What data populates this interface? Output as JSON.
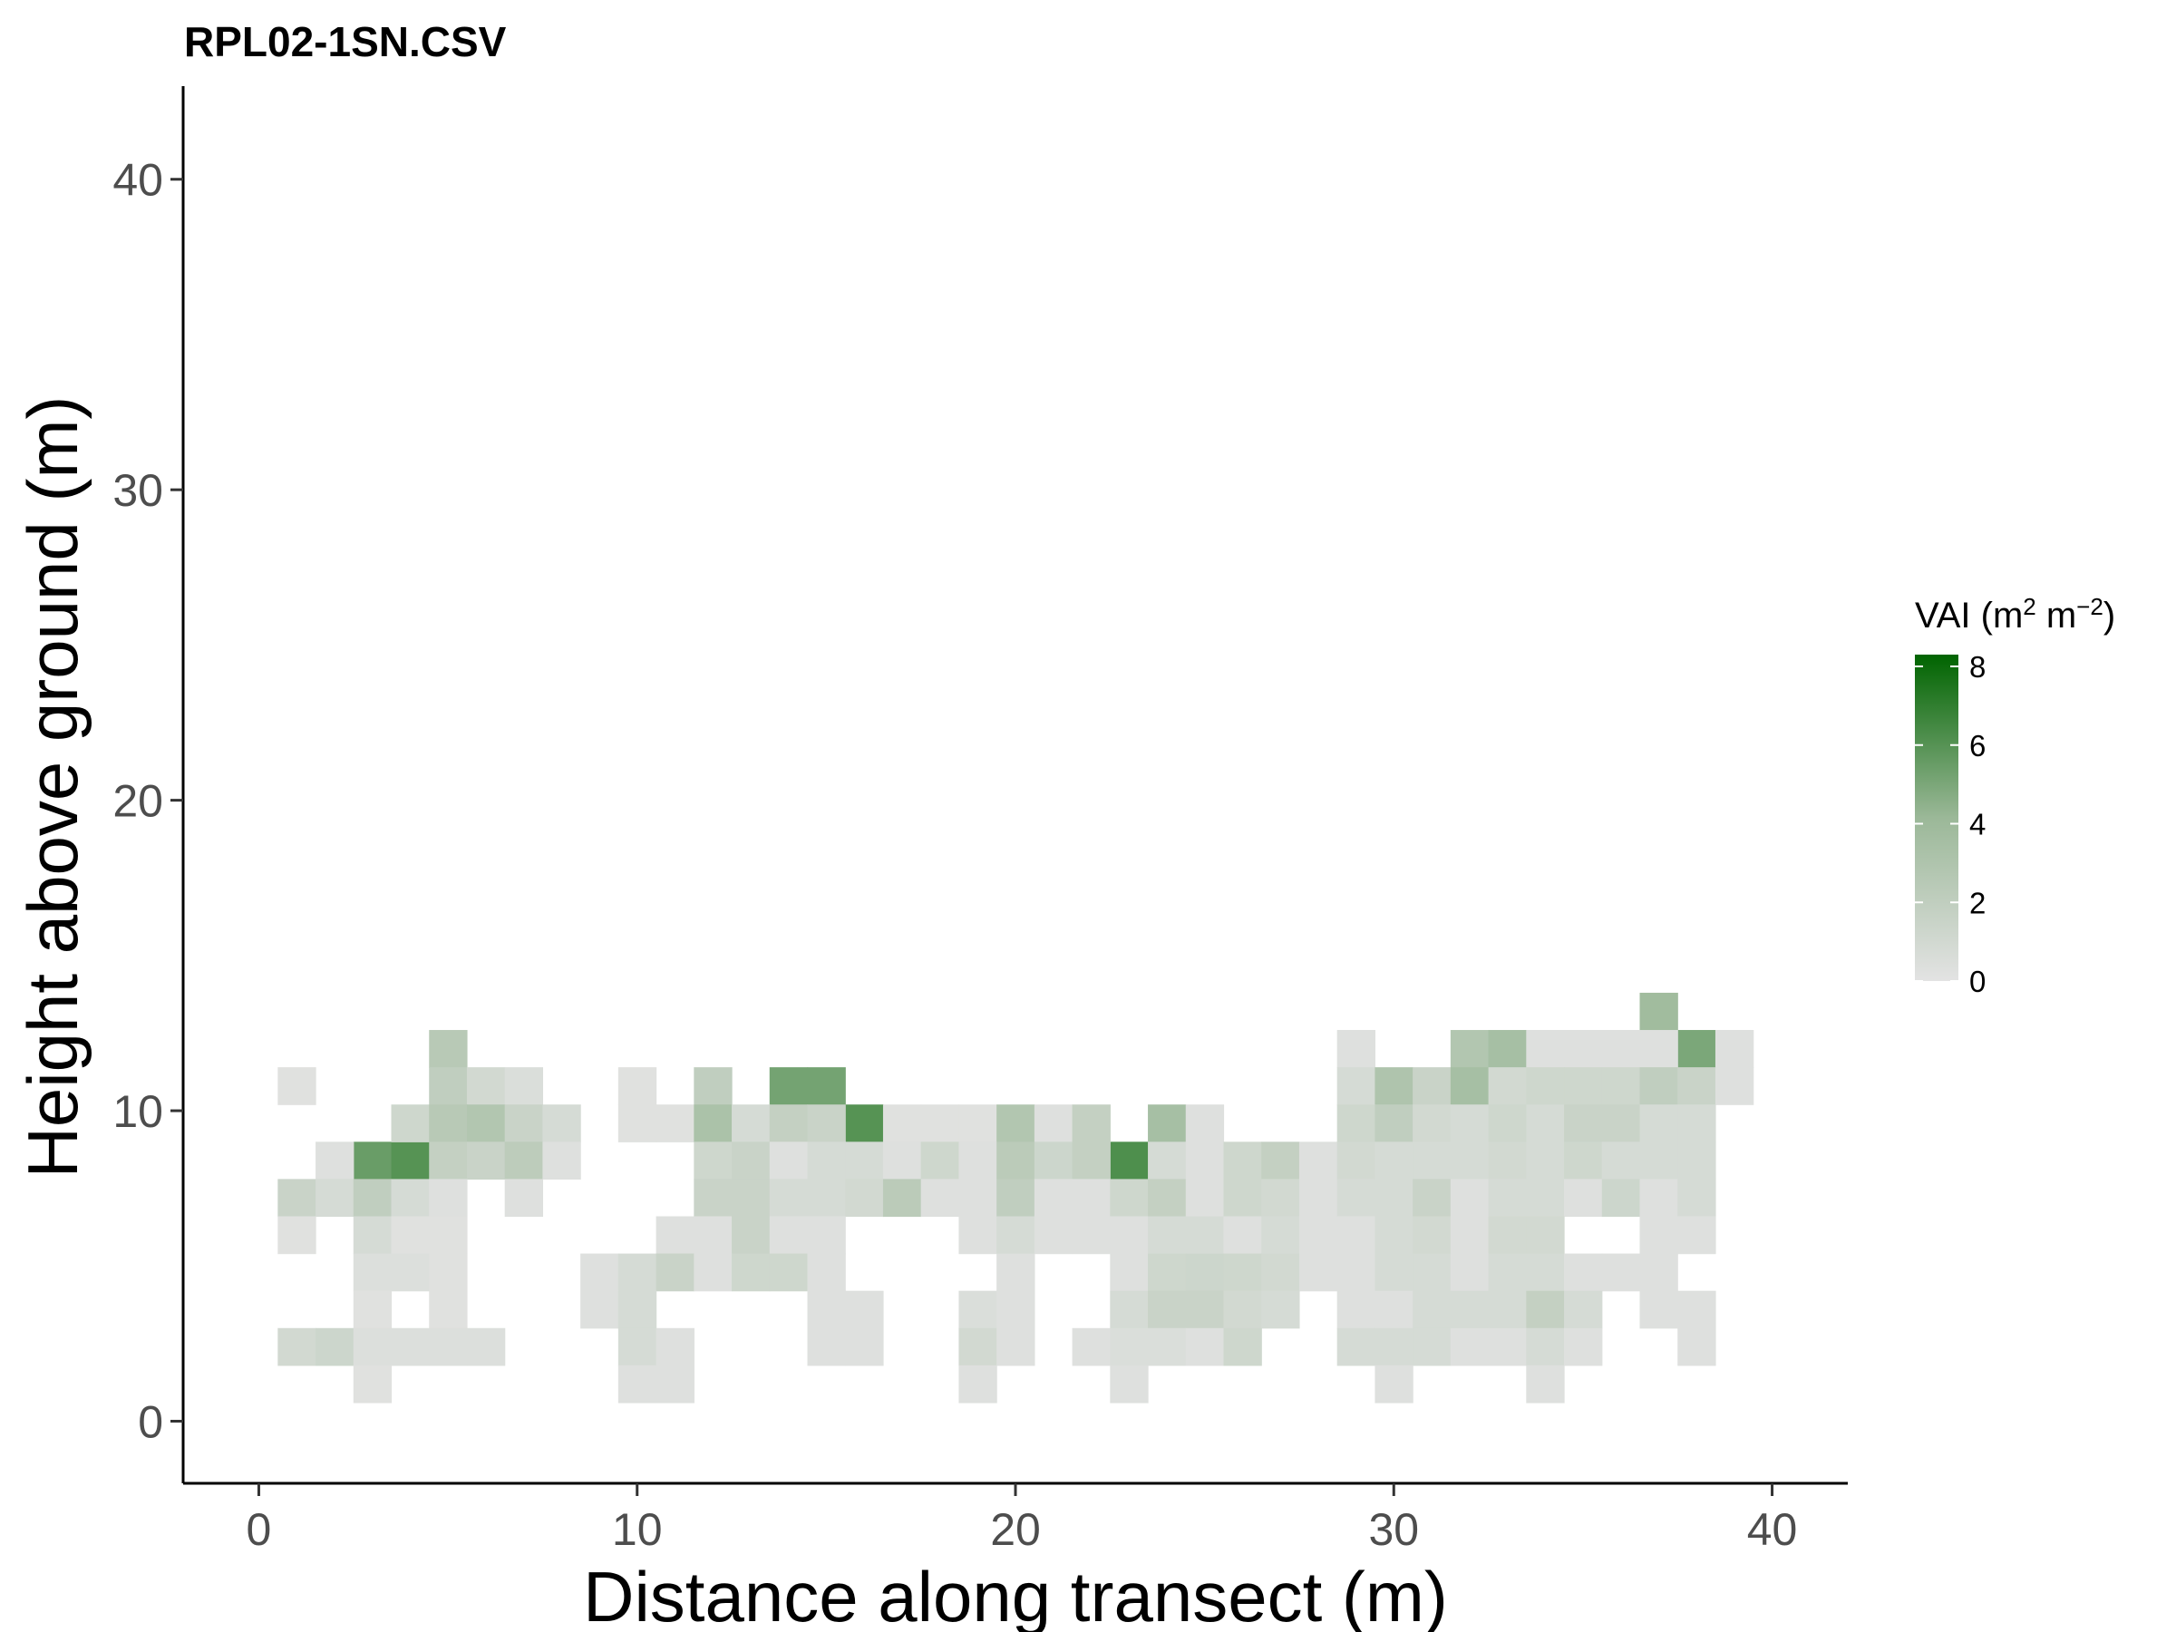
{
  "chart_data": {
    "type": "heatmap",
    "title": "RPL02-1SN.CSV",
    "xlabel": "Distance along transect (m)",
    "ylabel": "Height above ground (m)",
    "xlim": [
      -2,
      42
    ],
    "ylim": [
      -2,
      43
    ],
    "x_ticks": [
      0,
      10,
      20,
      30,
      40
    ],
    "y_ticks": [
      0,
      10,
      20,
      30,
      40
    ],
    "grid": false,
    "legend": {
      "title": "VAI (m",
      "title_sup1": "2",
      "title_mid": " m",
      "title_sup2": "−2",
      "title_end": ")",
      "position": "right",
      "min": 0,
      "max": 8.3,
      "ticks": [
        0,
        2,
        4,
        6,
        8
      ],
      "color_low": "#e3e3e3",
      "color_high": "#006400"
    },
    "cell_width": 1,
    "cell_height": 1.2,
    "cells": [
      [
        1,
        9,
        0.2
      ],
      [
        3,
        7,
        5.5
      ],
      [
        4,
        7,
        6.0
      ],
      [
        14,
        9,
        5.2
      ],
      [
        15,
        9,
        5.2
      ],
      [
        16,
        8,
        6.0
      ],
      [
        23,
        7,
        6.2
      ],
      [
        37,
        11,
        3.8
      ],
      [
        38,
        10,
        5.0
      ],
      [
        5,
        10,
        2.5
      ],
      [
        5,
        9,
        2.0
      ],
      [
        6,
        9,
        1.0
      ],
      [
        7,
        9,
        0.5
      ],
      [
        4,
        8,
        1.2
      ],
      [
        5,
        8,
        2.5
      ],
      [
        6,
        8,
        2.8
      ],
      [
        7,
        8,
        1.5
      ],
      [
        8,
        8,
        0.8
      ],
      [
        2,
        7,
        0.3
      ],
      [
        5,
        7,
        1.8
      ],
      [
        6,
        7,
        1.5
      ],
      [
        7,
        7,
        2.2
      ],
      [
        8,
        7,
        0.3
      ],
      [
        1,
        6,
        1.5
      ],
      [
        2,
        6,
        0.8
      ],
      [
        3,
        6,
        2.0
      ],
      [
        4,
        6,
        0.8
      ],
      [
        5,
        6,
        0.3
      ],
      [
        7,
        6,
        0.3
      ],
      [
        1,
        5,
        0.2
      ],
      [
        3,
        5,
        0.8
      ],
      [
        4,
        5,
        0.2
      ],
      [
        5,
        5,
        0.2
      ],
      [
        3,
        4,
        0.4
      ],
      [
        4,
        4,
        0.4
      ],
      [
        5,
        4,
        0.2
      ],
      [
        3,
        3,
        0.2
      ],
      [
        5,
        3,
        0.2
      ],
      [
        1,
        2,
        1.0
      ],
      [
        2,
        2,
        1.3
      ],
      [
        3,
        2,
        0.4
      ],
      [
        4,
        2,
        0.4
      ],
      [
        5,
        2,
        0.4
      ],
      [
        6,
        2,
        0.4
      ],
      [
        3,
        1,
        0.2
      ],
      [
        10,
        9,
        0.2
      ],
      [
        12,
        9,
        2.0
      ],
      [
        10,
        8,
        0.2
      ],
      [
        11,
        8,
        0.2
      ],
      [
        12,
        8,
        3.2
      ],
      [
        13,
        8,
        0.8
      ],
      [
        14,
        8,
        1.8
      ],
      [
        15,
        8,
        1.5
      ],
      [
        17,
        8,
        0.2
      ],
      [
        18,
        8,
        0.2
      ],
      [
        19,
        8,
        0.2
      ],
      [
        20,
        8,
        2.8
      ],
      [
        21,
        8,
        0.3
      ],
      [
        22,
        8,
        1.8
      ],
      [
        24,
        8,
        3.5
      ],
      [
        25,
        8,
        0.3
      ],
      [
        12,
        7,
        1.2
      ],
      [
        13,
        7,
        1.5
      ],
      [
        14,
        7,
        0.3
      ],
      [
        15,
        7,
        0.8
      ],
      [
        16,
        7,
        0.8
      ],
      [
        17,
        7,
        0.3
      ],
      [
        18,
        7,
        1.2
      ],
      [
        19,
        7,
        0.3
      ],
      [
        20,
        7,
        2.3
      ],
      [
        21,
        7,
        1.3
      ],
      [
        22,
        7,
        1.8
      ],
      [
        24,
        7,
        0.8
      ],
      [
        25,
        7,
        0.3
      ],
      [
        26,
        7,
        1.2
      ],
      [
        27,
        7,
        1.8
      ],
      [
        28,
        7,
        0.3
      ],
      [
        12,
        6,
        1.5
      ],
      [
        13,
        6,
        1.5
      ],
      [
        14,
        6,
        0.8
      ],
      [
        15,
        6,
        0.8
      ],
      [
        16,
        6,
        1.0
      ],
      [
        17,
        6,
        2.3
      ],
      [
        18,
        6,
        0.3
      ],
      [
        19,
        6,
        0.3
      ],
      [
        20,
        6,
        2.0
      ],
      [
        21,
        6,
        0.3
      ],
      [
        22,
        6,
        0.3
      ],
      [
        23,
        6,
        1.2
      ],
      [
        24,
        6,
        1.8
      ],
      [
        25,
        6,
        0.3
      ],
      [
        26,
        6,
        1.2
      ],
      [
        27,
        6,
        1.0
      ],
      [
        28,
        6,
        0.3
      ],
      [
        11,
        5,
        0.3
      ],
      [
        12,
        5,
        0.3
      ],
      [
        13,
        5,
        1.5
      ],
      [
        14,
        5,
        0.3
      ],
      [
        15,
        5,
        0.3
      ],
      [
        19,
        5,
        0.3
      ],
      [
        20,
        5,
        0.8
      ],
      [
        21,
        5,
        0.3
      ],
      [
        22,
        5,
        0.3
      ],
      [
        23,
        5,
        0.3
      ],
      [
        24,
        5,
        0.8
      ],
      [
        25,
        5,
        0.8
      ],
      [
        26,
        5,
        0.3
      ],
      [
        27,
        5,
        0.8
      ],
      [
        28,
        5,
        0.3
      ],
      [
        9,
        4,
        0.3
      ],
      [
        10,
        4,
        0.8
      ],
      [
        11,
        4,
        1.5
      ],
      [
        12,
        4,
        0.3
      ],
      [
        13,
        4,
        1.2
      ],
      [
        14,
        4,
        1.2
      ],
      [
        15,
        4,
        0.3
      ],
      [
        20,
        4,
        0.3
      ],
      [
        23,
        4,
        0.3
      ],
      [
        24,
        4,
        1.2
      ],
      [
        25,
        4,
        1.3
      ],
      [
        26,
        4,
        1.2
      ],
      [
        27,
        4,
        1.0
      ],
      [
        28,
        4,
        0.3
      ],
      [
        9,
        3,
        0.3
      ],
      [
        10,
        3,
        0.8
      ],
      [
        15,
        3,
        0.3
      ],
      [
        16,
        3,
        0.3
      ],
      [
        19,
        3,
        0.5
      ],
      [
        20,
        3,
        0.3
      ],
      [
        23,
        3,
        0.8
      ],
      [
        24,
        3,
        1.5
      ],
      [
        25,
        3,
        1.5
      ],
      [
        26,
        3,
        1.0
      ],
      [
        27,
        3,
        0.8
      ],
      [
        10,
        2,
        0.8
      ],
      [
        11,
        2,
        0.3
      ],
      [
        15,
        2,
        0.3
      ],
      [
        16,
        2,
        0.3
      ],
      [
        19,
        2,
        1.0
      ],
      [
        20,
        2,
        0.3
      ],
      [
        22,
        2,
        0.3
      ],
      [
        23,
        2,
        0.5
      ],
      [
        24,
        2,
        0.5
      ],
      [
        25,
        2,
        0.3
      ],
      [
        26,
        2,
        1.2
      ],
      [
        10,
        1,
        0.3
      ],
      [
        11,
        1,
        0.3
      ],
      [
        19,
        1,
        0.3
      ],
      [
        23,
        1,
        0.3
      ],
      [
        29,
        10,
        0.3
      ],
      [
        32,
        10,
        2.8
      ],
      [
        33,
        10,
        3.5
      ],
      [
        34,
        10,
        0.3
      ],
      [
        35,
        10,
        0.3
      ],
      [
        36,
        10,
        0.3
      ],
      [
        37,
        10,
        0.3
      ],
      [
        39,
        10,
        0.3
      ],
      [
        29,
        9,
        0.8
      ],
      [
        30,
        9,
        3.0
      ],
      [
        31,
        9,
        1.5
      ],
      [
        32,
        9,
        3.5
      ],
      [
        33,
        9,
        1.0
      ],
      [
        34,
        9,
        1.2
      ],
      [
        35,
        9,
        1.2
      ],
      [
        36,
        9,
        1.2
      ],
      [
        37,
        9,
        2.0
      ],
      [
        38,
        9,
        1.5
      ],
      [
        39,
        9,
        0.3
      ],
      [
        29,
        8,
        1.2
      ],
      [
        30,
        8,
        2.0
      ],
      [
        31,
        8,
        1.0
      ],
      [
        32,
        8,
        0.8
      ],
      [
        33,
        8,
        1.2
      ],
      [
        34,
        8,
        0.8
      ],
      [
        35,
        8,
        1.5
      ],
      [
        36,
        8,
        1.5
      ],
      [
        37,
        8,
        0.8
      ],
      [
        38,
        8,
        0.8
      ],
      [
        29,
        7,
        1.0
      ],
      [
        30,
        7,
        0.8
      ],
      [
        31,
        7,
        0.8
      ],
      [
        32,
        7,
        0.8
      ],
      [
        33,
        7,
        1.0
      ],
      [
        34,
        7,
        0.8
      ],
      [
        35,
        7,
        1.2
      ],
      [
        36,
        7,
        0.8
      ],
      [
        37,
        7,
        0.8
      ],
      [
        38,
        7,
        0.8
      ],
      [
        29,
        6,
        0.8
      ],
      [
        30,
        6,
        0.8
      ],
      [
        31,
        6,
        1.5
      ],
      [
        32,
        6,
        0.3
      ],
      [
        33,
        6,
        0.8
      ],
      [
        34,
        6,
        0.8
      ],
      [
        35,
        6,
        0.3
      ],
      [
        36,
        6,
        1.3
      ],
      [
        37,
        6,
        0.3
      ],
      [
        38,
        6,
        0.8
      ],
      [
        29,
        5,
        0.3
      ],
      [
        30,
        5,
        0.8
      ],
      [
        31,
        5,
        1.0
      ],
      [
        32,
        5,
        0.3
      ],
      [
        33,
        5,
        1.0
      ],
      [
        34,
        5,
        1.0
      ],
      [
        37,
        5,
        0.3
      ],
      [
        38,
        5,
        0.3
      ],
      [
        29,
        4,
        0.3
      ],
      [
        30,
        4,
        0.8
      ],
      [
        31,
        4,
        0.8
      ],
      [
        32,
        4,
        0.3
      ],
      [
        33,
        4,
        0.8
      ],
      [
        34,
        4,
        0.8
      ],
      [
        35,
        4,
        0.3
      ],
      [
        36,
        4,
        0.3
      ],
      [
        37,
        4,
        0.3
      ],
      [
        29,
        3,
        0.3
      ],
      [
        30,
        3,
        0.3
      ],
      [
        31,
        3,
        0.8
      ],
      [
        32,
        3,
        0.8
      ],
      [
        33,
        3,
        0.8
      ],
      [
        34,
        3,
        1.8
      ],
      [
        35,
        3,
        0.8
      ],
      [
        37,
        3,
        0.3
      ],
      [
        38,
        3,
        0.3
      ],
      [
        29,
        2,
        0.8
      ],
      [
        30,
        2,
        0.8
      ],
      [
        31,
        2,
        0.8
      ],
      [
        32,
        2,
        0.3
      ],
      [
        33,
        2,
        0.3
      ],
      [
        34,
        2,
        0.8
      ],
      [
        35,
        2,
        0.3
      ],
      [
        38,
        2,
        0.3
      ],
      [
        30,
        1,
        0.3
      ],
      [
        34,
        1,
        0.3
      ]
    ]
  }
}
